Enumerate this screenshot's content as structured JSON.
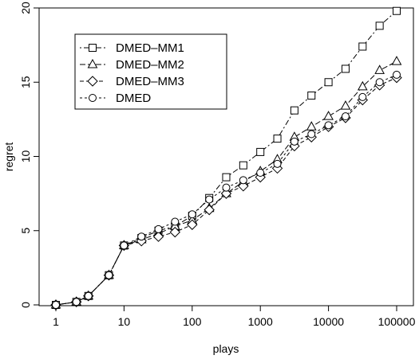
{
  "chart_data": {
    "type": "line",
    "xscale": "log",
    "xlabel": "plays",
    "ylabel": "regret",
    "xlim": [
      1,
      100000
    ],
    "ylim": [
      0,
      20
    ],
    "xticks": [
      1,
      10,
      100,
      1000,
      10000,
      100000
    ],
    "xtick_labels": [
      "1",
      "10",
      "100",
      "1000",
      "10000",
      "100000"
    ],
    "yticks": [
      0,
      5,
      10,
      15,
      20
    ],
    "ytick_labels": [
      "0",
      "5",
      "10",
      "15",
      "20"
    ],
    "grid": false,
    "legend_position": "top-left",
    "x": [
      1,
      2,
      3,
      6,
      10,
      18,
      32,
      56,
      100,
      178,
      316,
      562,
      1000,
      1778,
      3162,
      5623,
      10000,
      17783,
      31623,
      56234,
      100000
    ],
    "series": [
      {
        "name": "DMED–MM1",
        "marker": "square",
        "dash": "2,3,7,3",
        "values": [
          0.0,
          0.2,
          0.6,
          2.0,
          4.0,
          4.5,
          5.0,
          5.3,
          6.0,
          7.2,
          8.6,
          9.4,
          10.3,
          11.2,
          13.1,
          14.1,
          15.0,
          15.9,
          17.4,
          18.8,
          19.8
        ]
      },
      {
        "name": "DMED–MM2",
        "marker": "triangle",
        "dash": "7,3",
        "values": [
          0.0,
          0.2,
          0.6,
          2.0,
          4.0,
          4.4,
          4.8,
          5.3,
          5.7,
          6.5,
          7.5,
          8.3,
          9.0,
          9.8,
          11.3,
          12.0,
          12.7,
          13.4,
          14.7,
          15.8,
          16.4
        ]
      },
      {
        "name": "DMED–MM3",
        "marker": "diamond",
        "dash": "5,3",
        "values": [
          0.0,
          0.2,
          0.6,
          2.0,
          4.0,
          4.3,
          4.6,
          4.9,
          5.4,
          6.4,
          7.5,
          8.0,
          8.6,
          9.2,
          10.7,
          11.3,
          12.0,
          12.6,
          13.8,
          14.8,
          15.3
        ]
      },
      {
        "name": "DMED",
        "marker": "circle",
        "dash": "3,3",
        "values": [
          0.0,
          0.2,
          0.6,
          2.0,
          4.0,
          4.6,
          5.1,
          5.6,
          6.1,
          7.1,
          7.9,
          8.4,
          8.9,
          9.5,
          11.0,
          11.5,
          12.1,
          12.7,
          14.0,
          15.0,
          15.5
        ]
      }
    ]
  }
}
